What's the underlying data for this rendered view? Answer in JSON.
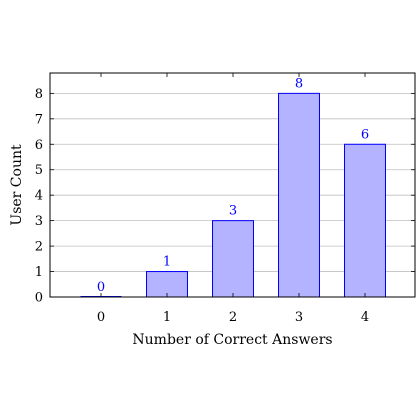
{
  "chart_data": {
    "type": "bar",
    "categories": [
      "0",
      "1",
      "2",
      "3",
      "4"
    ],
    "values": [
      0,
      1,
      3,
      8,
      6
    ],
    "data_labels": [
      "0",
      "1",
      "3",
      "8",
      "6"
    ],
    "title": "",
    "xlabel": "Number of Correct Answers",
    "ylabel": "User Count",
    "yticks": [
      "0",
      "1",
      "2",
      "3",
      "4",
      "5",
      "6",
      "7",
      "8"
    ],
    "ylim": [
      0,
      8.8
    ],
    "grid": "horizontal",
    "legend": "none",
    "colors": {
      "bar_fill": "#b3b3ff",
      "bar_stroke": "#0000ff",
      "label": "#0000ff",
      "grid": "#bfbfbf",
      "axis": "#000000"
    }
  }
}
